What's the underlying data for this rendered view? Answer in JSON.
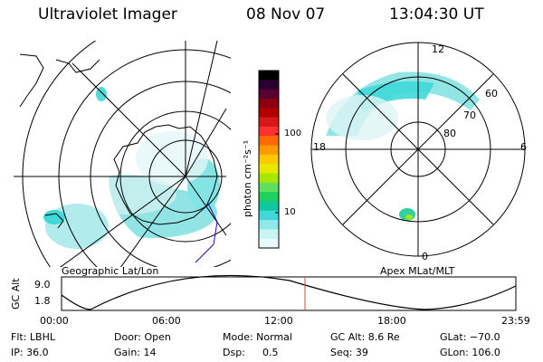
{
  "header": {
    "instrument": "Ultraviolet Imager",
    "date": "08 Nov 07",
    "time": "13:04:30 UT"
  },
  "colorbar": {
    "unit_label": "photon cm⁻²s⁻¹",
    "ticks": [
      "100",
      "10"
    ],
    "colors": [
      "#000000",
      "#2a0030",
      "#5a0030",
      "#8a0010",
      "#b00000",
      "#d81818",
      "#ff3030",
      "#ff6a00",
      "#ff9a00",
      "#ffc800",
      "#e8e800",
      "#a8e800",
      "#60e060",
      "#20d060",
      "#10c8a0",
      "#40d8d8",
      "#90e8e8",
      "#c8f4f4",
      "#e8fafa"
    ]
  },
  "geo_panel": {
    "label": "Geographic Lat/Lon"
  },
  "apex_panel": {
    "label": "Apex MLat/MLT",
    "mlt_labels": {
      "top": "12",
      "left": "18",
      "right": "6",
      "bottom": "0"
    },
    "lat_labels": [
      "60",
      "70",
      "80"
    ]
  },
  "orbit_plot": {
    "ylabel": "GC Alt",
    "yticks": [
      "9.0",
      "1.8"
    ],
    "xticks": [
      "00:00",
      "06:00",
      "12:00",
      "18:00",
      "23:59"
    ],
    "marker_color": "#e04040"
  },
  "info": {
    "row1": {
      "filter": "Flt: LBHL",
      "door": "Door: Open",
      "mode": "Mode: Normal",
      "gc_alt": "GC Alt: 8.6 Re",
      "glat": "GLat: −70.0"
    },
    "row2": {
      "ip": "IP: 36.0",
      "gain": "Gain: 14",
      "dsp_label": "Dsp:",
      "dsp_value": "0.5",
      "seq": "Seq: 39",
      "glon": "GLon: 106.0"
    }
  }
}
